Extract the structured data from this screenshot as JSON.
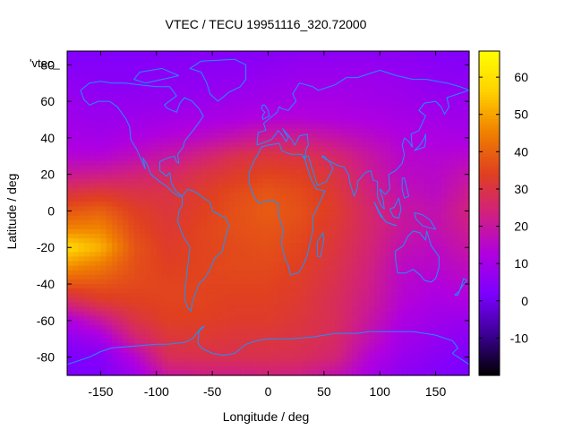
{
  "chart_data": {
    "type": "heatmap",
    "title": "VTEC / TECU 19951116_320.72000",
    "xlabel": "Longitude / deg",
    "ylabel": "Latitude / deg",
    "key_label": "'vtec_",
    "xlim": [
      -180,
      180
    ],
    "ylim": [
      -90,
      87.5
    ],
    "xticks": [
      -150,
      -100,
      -50,
      0,
      50,
      100,
      150
    ],
    "yticks": [
      -80,
      -60,
      -40,
      -20,
      0,
      20,
      40,
      60,
      80
    ],
    "colorbar": {
      "range": [
        -20,
        67
      ],
      "ticks": [
        -10,
        0,
        10,
        20,
        30,
        40,
        50,
        60
      ],
      "palette": [
        "#000000",
        "#3a0090",
        "#7b00ff",
        "#b000e0",
        "#d02080",
        "#e04020",
        "#f08000",
        "#ffd000",
        "#ffff00"
      ]
    },
    "grid": "Latitude 90 to -90 step 10 (rows) x Longitude -180 to 180 step 30 (columns); values in TECU",
    "grid_lats": [
      87.5,
      80,
      70,
      60,
      50,
      40,
      30,
      20,
      10,
      0,
      -10,
      -20,
      -30,
      -40,
      -50,
      -60,
      -70,
      -80,
      -87.5
    ],
    "grid_lons": [
      -180,
      -150,
      -120,
      -90,
      -60,
      -30,
      0,
      30,
      60,
      90,
      120,
      150,
      180
    ],
    "values": [
      [
        3,
        3,
        3,
        3,
        4,
        4,
        4,
        5,
        5,
        5,
        5,
        4,
        3
      ],
      [
        4,
        4,
        4,
        5,
        5,
        5,
        6,
        7,
        7,
        7,
        6,
        5,
        4
      ],
      [
        6,
        5,
        5,
        6,
        6,
        7,
        8,
        9,
        9,
        9,
        8,
        6,
        6
      ],
      [
        8,
        7,
        7,
        7,
        8,
        9,
        10,
        11,
        11,
        10,
        9,
        8,
        8
      ],
      [
        9,
        8,
        9,
        10,
        11,
        12,
        14,
        14,
        13,
        12,
        11,
        10,
        9
      ],
      [
        11,
        10,
        12,
        14,
        16,
        19,
        22,
        22,
        19,
        16,
        13,
        12,
        11
      ],
      [
        14,
        14,
        17,
        20,
        24,
        29,
        31,
        30,
        26,
        20,
        15,
        14,
        15
      ],
      [
        21,
        22,
        24,
        26,
        30,
        33,
        35,
        34,
        30,
        22,
        16,
        15,
        19
      ],
      [
        30,
        32,
        30,
        30,
        33,
        36,
        38,
        36,
        32,
        24,
        18,
        16,
        22
      ],
      [
        38,
        40,
        34,
        31,
        34,
        37,
        39,
        37,
        33,
        26,
        20,
        18,
        24
      ],
      [
        46,
        46,
        36,
        32,
        35,
        37,
        38,
        36,
        32,
        26,
        20,
        18,
        22
      ],
      [
        58,
        52,
        38,
        33,
        35,
        36,
        37,
        35,
        31,
        25,
        18,
        16,
        20
      ],
      [
        48,
        44,
        37,
        34,
        35,
        36,
        36,
        34,
        30,
        24,
        16,
        15,
        17
      ],
      [
        38,
        38,
        36,
        35,
        35,
        35,
        35,
        33,
        29,
        23,
        15,
        13,
        15
      ],
      [
        26,
        32,
        34,
        35,
        35,
        34,
        34,
        32,
        28,
        22,
        14,
        11,
        12
      ],
      [
        12,
        20,
        30,
        34,
        34,
        33,
        33,
        31,
        28,
        20,
        12,
        9,
        8
      ],
      [
        6,
        10,
        24,
        31,
        32,
        31,
        31,
        30,
        27,
        18,
        10,
        7,
        5
      ],
      [
        2,
        4,
        14,
        28,
        29,
        29,
        29,
        28,
        25,
        14,
        8,
        5,
        3
      ],
      [
        2,
        3,
        10,
        22,
        24,
        24,
        25,
        24,
        20,
        12,
        6,
        4,
        2
      ]
    ],
    "coastline_color": "#1e90ff"
  }
}
